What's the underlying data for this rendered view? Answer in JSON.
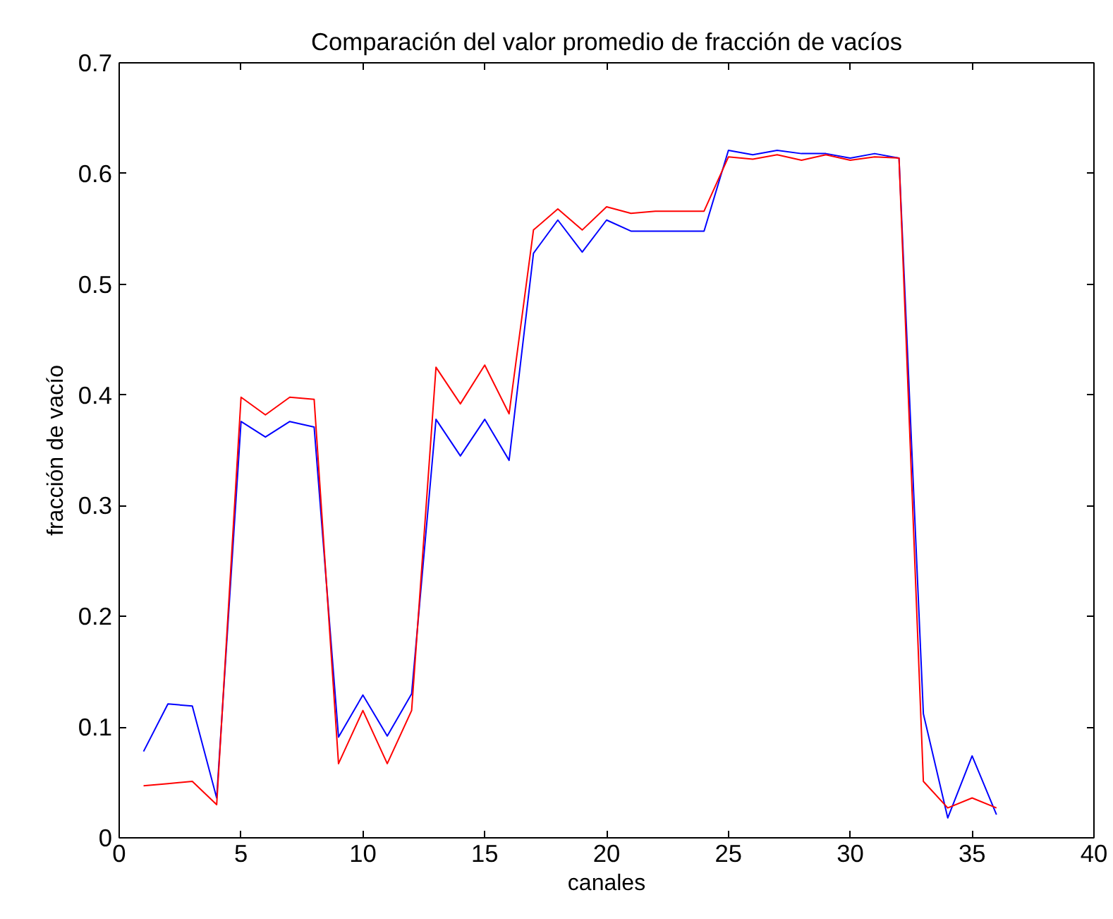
{
  "chart_data": {
    "type": "line",
    "title": "Comparación del valor promedio de fracción de vacíos",
    "xlabel": "canales",
    "ylabel": "fracción de vacío",
    "x": [
      1,
      2,
      3,
      4,
      5,
      6,
      7,
      8,
      9,
      10,
      11,
      12,
      13,
      14,
      15,
      16,
      17,
      18,
      19,
      20,
      21,
      22,
      23,
      24,
      25,
      26,
      27,
      28,
      29,
      30,
      31,
      32,
      33,
      34,
      35,
      36
    ],
    "series": [
      {
        "color": "#0000ff",
        "values": [
          0.078,
          0.121,
          0.119,
          0.036,
          0.376,
          0.362,
          0.376,
          0.371,
          0.091,
          0.129,
          0.092,
          0.13,
          0.378,
          0.345,
          0.378,
          0.341,
          0.528,
          0.558,
          0.529,
          0.558,
          0.548,
          0.548,
          0.548,
          0.548,
          0.621,
          0.617,
          0.621,
          0.618,
          0.618,
          0.614,
          0.618,
          0.614,
          0.112,
          0.018,
          0.074,
          0.021
        ]
      },
      {
        "color": "#ff0000",
        "values": [
          0.047,
          0.049,
          0.051,
          0.03,
          0.398,
          0.382,
          0.398,
          0.396,
          0.067,
          0.115,
          0.067,
          0.115,
          0.425,
          0.392,
          0.427,
          0.383,
          0.549,
          0.568,
          0.549,
          0.57,
          0.564,
          0.566,
          0.566,
          0.566,
          0.615,
          0.613,
          0.617,
          0.612,
          0.617,
          0.612,
          0.615,
          0.614,
          0.051,
          0.027,
          0.036,
          0.027
        ]
      }
    ],
    "xlim": [
      0,
      40
    ],
    "ylim": [
      0,
      0.7
    ],
    "xticks": [
      0,
      5,
      10,
      15,
      20,
      25,
      30,
      35,
      40
    ],
    "yticks": [
      0,
      {
        "value": 0.1,
        "label": "0.1"
      },
      {
        "value": 0.2,
        "label": "0.2"
      },
      {
        "value": 0.3,
        "label": "0.3"
      },
      {
        "value": 0.4,
        "label": "0.4"
      },
      {
        "value": 0.5,
        "label": "0.5"
      },
      {
        "value": 0.6,
        "label": "0.6"
      },
      {
        "value": 0.7,
        "label": "0.7"
      }
    ],
    "grid": false,
    "line_style": "solid",
    "marker": "none"
  }
}
